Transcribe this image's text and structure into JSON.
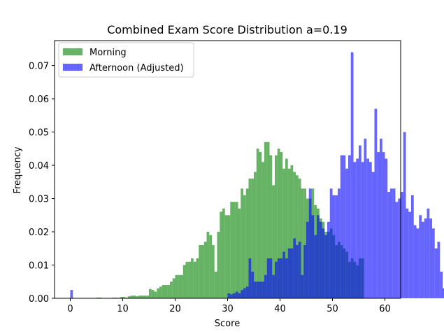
{
  "chart_data": {
    "type": "bar",
    "title": "Combined Exam Score Distribution a=0.19",
    "xlabel": "Score",
    "ylabel": "Frequency",
    "xlim": [
      -3,
      63
    ],
    "ylim": [
      0,
      0.0775
    ],
    "xticks": [
      0,
      10,
      20,
      30,
      40,
      50,
      60
    ],
    "yticks": [
      0.0,
      0.01,
      0.02,
      0.03,
      0.04,
      0.05,
      0.06,
      0.07
    ],
    "legend": {
      "placement": "top-left"
    },
    "series": [
      {
        "name": "Morning",
        "color": "#008000",
        "opacity": 0.6,
        "bin_width": 0.5,
        "x_start": 5.0,
        "values": [
          0.0002,
          0.0002,
          0,
          0,
          0,
          0,
          0.0002,
          0.0002,
          0,
          0.0004,
          0.0004,
          0.0002,
          0.0006,
          0.0008,
          0.0008,
          0.0006,
          0.0008,
          0.0008,
          0.0008,
          0.0008,
          0.0028,
          0.0025,
          0.002,
          0.003,
          0.0035,
          0.004,
          0.004,
          0.004,
          0.005,
          0.006,
          0.007,
          0.007,
          0.007,
          0.01,
          0.011,
          0.011,
          0.012,
          0.011,
          0.012,
          0.016,
          0.016,
          0.017,
          0.02,
          0.019,
          0.016,
          0.008,
          0.02,
          0.026,
          0.027,
          0.025,
          0.025,
          0.029,
          0.029,
          0.029,
          0.027,
          0.033,
          0.031,
          0.033,
          0.036,
          0.036,
          0.038,
          0.045,
          0.044,
          0.041,
          0.047,
          0.047,
          0.043,
          0.034,
          0.043,
          0.045,
          0.044,
          0.039,
          0.042,
          0.039,
          0.04,
          0.038,
          0.037,
          0.036,
          0.033,
          0.033,
          0.03,
          0.03,
          0.033,
          0.028,
          0.027,
          0.024,
          0.023,
          0.02,
          0.02,
          0.021,
          0.019,
          0.016,
          0.017,
          0.016,
          0.015,
          0.014,
          0.011,
          0.012,
          0.011,
          0.01,
          0.012,
          0.012
        ]
      },
      {
        "name": "Afternoon (Adjusted)",
        "color": "#0000ff",
        "opacity": 0.6,
        "bin_width": 0.5,
        "x_start": 0.0,
        "values": [
          0.0025,
          0,
          0,
          0,
          0,
          0,
          0,
          0,
          0,
          0,
          0,
          0,
          0,
          0,
          0,
          0,
          0,
          0,
          0,
          0,
          0,
          0,
          0,
          0,
          0,
          0,
          0,
          0,
          0,
          0,
          0,
          0,
          0,
          0,
          0,
          0,
          0,
          0,
          0,
          0,
          0,
          0,
          0,
          0,
          0,
          0,
          0,
          0,
          0,
          0,
          0,
          0,
          0,
          0,
          0,
          0,
          0,
          0,
          0,
          0,
          0.0015,
          0.0012,
          0.0015,
          0.002,
          0.0015,
          0.0025,
          0.003,
          0.0035,
          0.012,
          0.008,
          0.005,
          0.005,
          0.005,
          0.005,
          0.007,
          0.012,
          0.012,
          0.007,
          0.011,
          0.012,
          0.012,
          0.014,
          0.012,
          0.015,
          0.015,
          0.018,
          0.016,
          0.017,
          0.007,
          0.016,
          0.023,
          0.033,
          0.025,
          0.019,
          0.025,
          0.023,
          0.021,
          0.019,
          0.023,
          0.033,
          0.031,
          0.031,
          0.033,
          0.043,
          0.043,
          0.039,
          0.043,
          0.074,
          0.041,
          0.042,
          0.046,
          0.041,
          0.048,
          0.042,
          0.041,
          0.038,
          0.057,
          0.044,
          0.048,
          0.044,
          0.042,
          0.032,
          0.033,
          0.033,
          0.029,
          0.03,
          0.032,
          0.05,
          0.027,
          0.026,
          0.031,
          0.022,
          0.021,
          0.025,
          0.023,
          0.024,
          0.027,
          0.024,
          0.021,
          0.015,
          0.017,
          0.008,
          0.003,
          0.003,
          0.003,
          0.005,
          0.005,
          0,
          0.004,
          0.004
        ]
      }
    ]
  }
}
